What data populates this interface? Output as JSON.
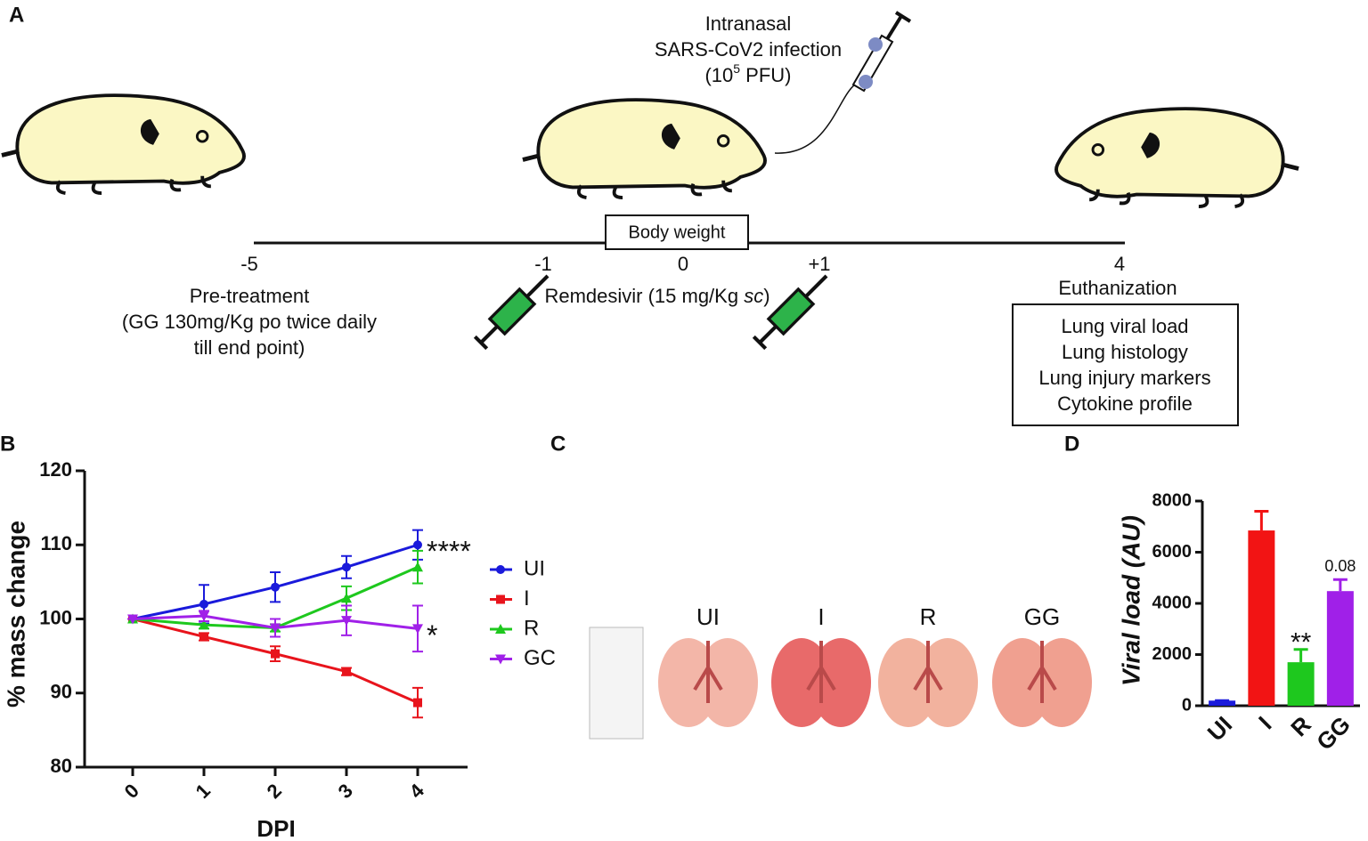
{
  "panel_labels": [
    "A",
    "B",
    "C",
    "D"
  ],
  "diagram": {
    "infection": [
      "Intranasal",
      "SARS-CoV2 infection"
    ],
    "infection_dose": [
      "(10",
      "5",
      " PFU)"
    ],
    "body_weight": "Body weight",
    "timeline": [
      "-5",
      "-1",
      "0",
      "+1",
      "4"
    ],
    "pretreatment": [
      "Pre-treatment",
      "(GG 130mg/Kg po twice daily",
      "till end point)"
    ],
    "remdesivir": [
      "Remdesivir (15 mg/Kg ",
      "sc",
      ")"
    ],
    "euthanization": "Euthanization",
    "endpoints": [
      "Lung viral load",
      "Lung histology",
      "Lung injury markers",
      "Cytokine profile"
    ]
  },
  "photo": {
    "labels": [
      "UI",
      "I",
      "R",
      "GG"
    ]
  },
  "chart_data": [
    {
      "type": "line",
      "x_label": "DPI",
      "y_label": "% mass change",
      "x": [
        0,
        1,
        2,
        3,
        4
      ],
      "xlim": [
        -0.675,
        4.7
      ],
      "xticks": [
        0,
        1,
        2,
        3,
        4
      ],
      "ylim": [
        80,
        120
      ],
      "yticks": [
        80,
        90,
        100,
        110,
        120
      ],
      "series": [
        {
          "name": "UI",
          "color": "#1a1adb",
          "marker": "circle",
          "values": [
            100,
            102,
            104.3,
            107,
            110
          ],
          "errors": [
            0,
            2.6,
            2,
            1.5,
            2
          ],
          "annotation": "****"
        },
        {
          "name": "I",
          "color": "#e8141c",
          "marker": "square",
          "values": [
            100,
            97.6,
            95.3,
            92.9,
            88.7
          ],
          "errors": [
            0,
            0.5,
            1,
            0.5,
            2
          ],
          "annotation": null
        },
        {
          "name": "R",
          "color": "#1ec81e",
          "marker": "triangle-up",
          "values": [
            100,
            99.2,
            98.8,
            102.8,
            107
          ],
          "errors": [
            0,
            0.5,
            0.5,
            1.6,
            2.2
          ],
          "annotation": null
        },
        {
          "name": "GC",
          "color": "#a020e8",
          "marker": "triangle-down",
          "values": [
            100,
            100.4,
            98.8,
            99.8,
            98.7
          ],
          "errors": [
            0,
            0.7,
            1.2,
            2,
            3.1
          ],
          "annotation": "*"
        }
      ]
    },
    {
      "type": "bar",
      "y_label": "Viral load (AU)",
      "categories": [
        "UI",
        "I",
        "R",
        "GG"
      ],
      "values": [
        200,
        6850,
        1700,
        4480
      ],
      "errors": [
        0,
        750,
        500,
        450
      ],
      "colors": [
        "#1a1adb",
        "#f21414",
        "#1ec81e",
        "#a020e8"
      ],
      "value_annotations": [
        null,
        null,
        "**",
        "0.08"
      ],
      "ylim": [
        0,
        8000
      ],
      "yticks": [
        0,
        2000,
        4000,
        6000,
        8000
      ]
    }
  ]
}
